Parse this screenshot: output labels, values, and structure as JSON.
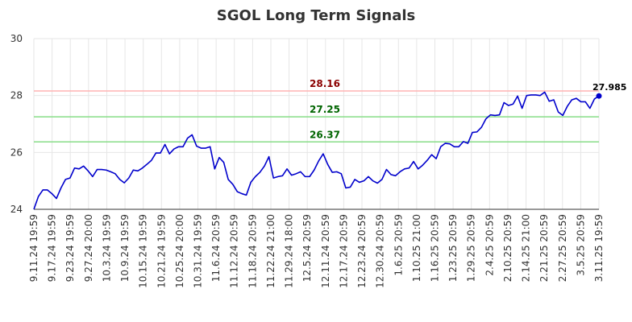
{
  "chart_data": {
    "type": "line",
    "title": "SGOL Long Term Signals",
    "xlabel": "",
    "ylabel": "",
    "ylim": [
      24,
      30
    ],
    "yticks": [
      "24",
      "26",
      "28",
      "30"
    ],
    "grid": true,
    "legend": "none",
    "colors": {
      "line": "#0000cc",
      "resistance": "#ffb3b3",
      "support": "#88dd88",
      "resistance_label": "#8b0000",
      "support_label": "#006400"
    },
    "x_tick_labels": [
      "9.11.24 19:59",
      "9.17.24 19:59",
      "9.23.24 19:59",
      "9.27.24 20:00",
      "10.3.24 19:59",
      "10.9.24 19:59",
      "10.15.24 19:59",
      "10.21.24 19:59",
      "10.25.24 20:00",
      "10.31.24 19:59",
      "11.6.24 20:59",
      "11.12.24 20:59",
      "11.18.24 20:59",
      "11.22.24 21:00",
      "11.29.24 18:00",
      "12.5.24 20:59",
      "12.11.24 20:59",
      "12.17.24 20:59",
      "12.23.24 20:59",
      "12.30.24 20:59",
      "1.6.25 20:59",
      "1.10.25 21:00",
      "1.16.25 20:59",
      "1.23.25 20:59",
      "1.29.25 20:59",
      "2.4.25 20:59",
      "2.10.25 20:59",
      "2.14.25 21:00",
      "2.21.25 20:59",
      "2.27.25 20:59",
      "3.5.25 20:59",
      "3.11.25 19:59"
    ],
    "horizontal_lines": [
      {
        "label": "28.16",
        "value": 28.16,
        "kind": "resistance"
      },
      {
        "label": "27.25",
        "value": 27.25,
        "kind": "support"
      },
      {
        "label": "26.37",
        "value": 26.37,
        "kind": "support"
      }
    ],
    "last_point_label": "27.985",
    "series": [
      {
        "values": [
          24.0,
          24.45,
          24.68,
          24.68,
          24.55,
          24.38,
          24.75,
          25.05,
          25.1,
          25.45,
          25.42,
          25.52,
          25.35,
          25.15,
          25.4,
          25.4,
          25.38,
          25.32,
          25.25,
          25.05,
          24.93,
          25.1,
          25.38,
          25.35,
          25.45,
          25.58,
          25.72,
          25.98,
          25.98,
          26.28,
          25.95,
          26.12,
          26.2,
          26.2,
          26.5,
          26.62,
          26.22,
          26.15,
          26.15,
          26.2,
          25.42,
          25.82,
          25.65,
          25.05,
          24.88,
          24.62,
          24.55,
          24.5,
          24.95,
          25.15,
          25.3,
          25.52,
          25.85,
          25.1,
          25.15,
          25.18,
          25.42,
          25.2,
          25.25,
          25.32,
          25.15,
          25.15,
          25.38,
          25.7,
          25.95,
          25.58,
          25.3,
          25.32,
          25.25,
          24.75,
          24.78,
          25.05,
          24.95,
          25.0,
          25.15,
          25.0,
          24.92,
          25.05,
          25.4,
          25.22,
          25.18,
          25.32,
          25.42,
          25.45,
          25.68,
          25.42,
          25.55,
          25.72,
          25.92,
          25.78,
          26.2,
          26.32,
          26.3,
          26.2,
          26.2,
          26.38,
          26.32,
          26.7,
          26.72,
          26.88,
          27.18,
          27.32,
          27.3,
          27.32,
          27.75,
          27.65,
          27.7,
          27.98,
          27.55,
          28.0,
          28.02,
          28.02,
          28.0,
          28.12,
          27.8,
          27.85,
          27.42,
          27.3,
          27.62,
          27.85,
          27.9,
          27.78,
          27.78,
          27.55,
          27.88,
          27.985
        ]
      }
    ]
  }
}
